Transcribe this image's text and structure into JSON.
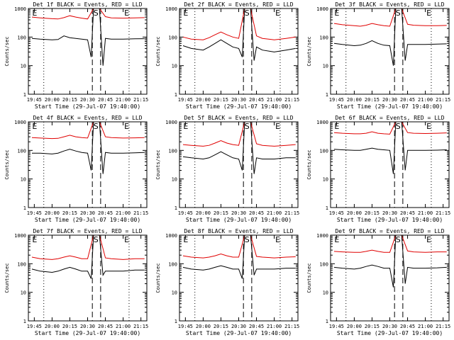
{
  "chart_data": [
    {
      "type": "line",
      "title": "Det 1f BLACK = Events, RED = LLD",
      "xlabel": "Start Time (29-Jul-07 19:40:00)",
      "ylabel": "Counts/sec",
      "yscale": "log",
      "ylim": [
        1,
        1000
      ],
      "ytick_labels": [
        "1",
        "10",
        "100",
        "1000"
      ],
      "xtick_labels": [
        "19:45",
        "20:00",
        "20:15",
        "20:30",
        "20:45",
        "21:00",
        "21:15"
      ],
      "markers": [
        "E",
        "S",
        "E"
      ],
      "series": [
        {
          "name": "LLD",
          "color": "#e00000",
          "x": [
            "19:43",
            "19:50",
            "20:00",
            "20:05",
            "20:10",
            "20:15",
            "20:20",
            "20:25",
            "20:30",
            "20:35",
            "20:40",
            "20:45",
            "20:50",
            "21:00",
            "21:10",
            "21:18"
          ],
          "y": [
            500,
            470,
            440,
            430,
            480,
            560,
            500,
            460,
            430,
            1000,
            1000,
            520,
            470,
            460,
            470,
            480
          ]
        },
        {
          "name": "Events",
          "color": "#000000",
          "x": [
            "19:43",
            "19:50",
            "20:00",
            "20:05",
            "20:10",
            "20:15",
            "20:20",
            "20:25",
            "20:30",
            "20:33",
            "20:35",
            "20:40",
            "20:43",
            "20:45",
            "20:50",
            "21:00",
            "21:10",
            "21:18"
          ],
          "y": [
            90,
            85,
            80,
            82,
            110,
            95,
            90,
            85,
            80,
            20,
            1000,
            1000,
            10,
            90,
            85,
            85,
            87,
            88
          ]
        }
      ]
    },
    {
      "type": "line",
      "title": "Det 2f BLACK = Events, RED = LLD",
      "xlabel": "Start Time (29-Jul-07 19:40:00)",
      "ylabel": "Counts/sec",
      "yscale": "log",
      "ylim": [
        1,
        1000
      ],
      "ytick_labels": [
        "1",
        "10",
        "100",
        "1000"
      ],
      "xtick_labels": [
        "19:45",
        "20:00",
        "20:15",
        "20:30",
        "20:45",
        "21:00",
        "21:15"
      ],
      "markers": [
        "E",
        "S",
        "E"
      ],
      "series": [
        {
          "name": "LLD",
          "color": "#e00000",
          "x": [
            "19:43",
            "19:50",
            "20:00",
            "20:05",
            "20:10",
            "20:15",
            "20:20",
            "20:25",
            "20:30",
            "20:35",
            "20:40",
            "20:45",
            "20:50",
            "21:00",
            "21:10",
            "21:18"
          ],
          "y": [
            100,
            85,
            80,
            95,
            120,
            150,
            120,
            100,
            90,
            1000,
            1000,
            110,
            90,
            80,
            90,
            100
          ]
        },
        {
          "name": "Events",
          "color": "#000000",
          "x": [
            "19:43",
            "19:50",
            "20:00",
            "20:05",
            "20:10",
            "20:15",
            "20:20",
            "20:25",
            "20:30",
            "20:33",
            "20:35",
            "20:40",
            "20:43",
            "20:45",
            "20:50",
            "21:00",
            "21:10",
            "21:18"
          ],
          "y": [
            50,
            40,
            35,
            45,
            60,
            80,
            60,
            45,
            40,
            20,
            1000,
            1000,
            15,
            45,
            35,
            30,
            35,
            40
          ]
        }
      ]
    },
    {
      "type": "line",
      "title": "Det 3f BLACK = Events, RED = LLD",
      "xlabel": "Start Time (29-Jul-07 19:40:00)",
      "ylabel": "Counts/sec",
      "yscale": "log",
      "ylim": [
        1,
        1000
      ],
      "ytick_labels": [
        "1",
        "10",
        "100",
        "1000"
      ],
      "xtick_labels": [
        "19:45",
        "20:00",
        "20:15",
        "20:30",
        "20:45",
        "21:00",
        "21:15"
      ],
      "markers": [
        "E",
        "S",
        "E"
      ],
      "series": [
        {
          "name": "LLD",
          "color": "#e00000",
          "x": [
            "19:43",
            "19:50",
            "20:00",
            "20:05",
            "20:10",
            "20:15",
            "20:20",
            "20:25",
            "20:30",
            "20:35",
            "20:40",
            "20:45",
            "20:50",
            "21:00",
            "21:10",
            "21:18"
          ],
          "y": [
            300,
            270,
            250,
            240,
            260,
            300,
            270,
            250,
            240,
            1000,
            1000,
            280,
            260,
            250,
            250,
            255
          ]
        },
        {
          "name": "Events",
          "color": "#000000",
          "x": [
            "19:43",
            "19:50",
            "20:00",
            "20:05",
            "20:10",
            "20:15",
            "20:20",
            "20:25",
            "20:30",
            "20:33",
            "20:35",
            "20:40",
            "20:43",
            "20:45",
            "20:50",
            "21:00",
            "21:10",
            "21:18"
          ],
          "y": [
            60,
            55,
            50,
            52,
            60,
            75,
            60,
            52,
            50,
            10,
            1000,
            1000,
            15,
            55,
            55,
            55,
            57,
            58
          ]
        }
      ]
    },
    {
      "type": "line",
      "title": "Det 4f BLACK = Events, RED = LLD",
      "xlabel": "Start Time (29-Jul-07 19:40:00)",
      "ylabel": "Counts/sec",
      "yscale": "log",
      "ylim": [
        1,
        1000
      ],
      "ytick_labels": [
        "1",
        "10",
        "100",
        "1000"
      ],
      "xtick_labels": [
        "19:45",
        "20:00",
        "20:15",
        "20:30",
        "20:45",
        "21:00",
        "21:15"
      ],
      "markers": [
        "E",
        "S",
        "E"
      ],
      "series": [
        {
          "name": "LLD",
          "color": "#e00000",
          "x": [
            "19:43",
            "19:50",
            "20:00",
            "20:05",
            "20:10",
            "20:15",
            "20:20",
            "20:25",
            "20:30",
            "20:35",
            "20:40",
            "20:45",
            "20:50",
            "21:00",
            "21:10",
            "21:18"
          ],
          "y": [
            280,
            270,
            260,
            265,
            300,
            340,
            300,
            280,
            270,
            1000,
            1000,
            300,
            280,
            270,
            275,
            280
          ]
        },
        {
          "name": "Events",
          "color": "#000000",
          "x": [
            "19:43",
            "19:50",
            "20:00",
            "20:05",
            "20:10",
            "20:15",
            "20:20",
            "20:25",
            "20:30",
            "20:33",
            "20:35",
            "20:40",
            "20:43",
            "20:45",
            "20:50",
            "21:00",
            "21:10",
            "21:18"
          ],
          "y": [
            80,
            80,
            75,
            80,
            95,
            110,
            95,
            85,
            80,
            20,
            1000,
            1000,
            15,
            85,
            80,
            80,
            82,
            85
          ]
        }
      ]
    },
    {
      "type": "line",
      "title": "Det 5f BLACK = Events, RED = LLD",
      "xlabel": "Start Time (29-Jul-07 19:40:00)",
      "ylabel": "Counts/sec",
      "yscale": "log",
      "ylim": [
        1,
        1000
      ],
      "ytick_labels": [
        "1",
        "10",
        "100",
        "1000"
      ],
      "xtick_labels": [
        "19:45",
        "20:00",
        "20:15",
        "20:30",
        "20:45",
        "21:00",
        "21:15"
      ],
      "markers": [
        "E",
        "S",
        "E"
      ],
      "series": [
        {
          "name": "LLD",
          "color": "#e00000",
          "x": [
            "19:43",
            "19:50",
            "20:00",
            "20:05",
            "20:10",
            "20:15",
            "20:20",
            "20:25",
            "20:30",
            "20:35",
            "20:40",
            "20:45",
            "20:50",
            "21:00",
            "21:10",
            "21:18"
          ],
          "y": [
            160,
            150,
            140,
            150,
            180,
            220,
            180,
            160,
            150,
            1000,
            1000,
            170,
            150,
            140,
            150,
            160
          ]
        },
        {
          "name": "Events",
          "color": "#000000",
          "x": [
            "19:43",
            "19:50",
            "20:00",
            "20:05",
            "20:10",
            "20:15",
            "20:20",
            "20:25",
            "20:30",
            "20:33",
            "20:35",
            "20:40",
            "20:43",
            "20:45",
            "20:50",
            "21:00",
            "21:10",
            "21:18"
          ],
          "y": [
            60,
            55,
            50,
            55,
            70,
            90,
            70,
            55,
            50,
            20,
            1000,
            1000,
            15,
            55,
            50,
            50,
            55,
            55
          ]
        }
      ]
    },
    {
      "type": "line",
      "title": "Det 6f BLACK = Events, RED = LLD",
      "xlabel": "Start Time (29-Jul-07 19:40:00)",
      "ylabel": "Counts/sec",
      "yscale": "log",
      "ylim": [
        1,
        1000
      ],
      "ytick_labels": [
        "1",
        "10",
        "100",
        "1000"
      ],
      "xtick_labels": [
        "19:45",
        "20:00",
        "20:15",
        "20:30",
        "20:45",
        "21:00",
        "21:15"
      ],
      "markers": [
        "E",
        "S",
        "E"
      ],
      "series": [
        {
          "name": "LLD",
          "color": "#e00000",
          "x": [
            "19:43",
            "19:50",
            "20:00",
            "20:05",
            "20:10",
            "20:15",
            "20:20",
            "20:25",
            "20:30",
            "20:35",
            "20:40",
            "20:45",
            "20:50",
            "21:00",
            "21:10",
            "21:18"
          ],
          "y": [
            420,
            400,
            380,
            380,
            400,
            450,
            400,
            380,
            370,
            1000,
            1000,
            420,
            400,
            390,
            400,
            410
          ]
        },
        {
          "name": "Events",
          "color": "#000000",
          "x": [
            "19:43",
            "19:50",
            "20:00",
            "20:05",
            "20:10",
            "20:15",
            "20:20",
            "20:25",
            "20:30",
            "20:33",
            "20:35",
            "20:40",
            "20:43",
            "20:45",
            "20:50",
            "21:00",
            "21:10",
            "21:18"
          ],
          "y": [
            110,
            105,
            100,
            100,
            110,
            120,
            110,
            105,
            100,
            15,
            1000,
            1000,
            20,
            100,
            100,
            100,
            102,
            105
          ]
        }
      ]
    },
    {
      "type": "line",
      "title": "Det 7f BLACK = Events, RED = LLD",
      "xlabel": "Start Time (29-Jul-07 19:40:00)",
      "ylabel": "Counts/sec",
      "yscale": "log",
      "ylim": [
        1,
        1000
      ],
      "ytick_labels": [
        "1",
        "10",
        "100",
        "1000"
      ],
      "xtick_labels": [
        "19:45",
        "20:00",
        "20:15",
        "20:30",
        "20:45",
        "21:00",
        "21:15"
      ],
      "markers": [
        "E",
        "S",
        "E"
      ],
      "series": [
        {
          "name": "LLD",
          "color": "#e00000",
          "x": [
            "19:43",
            "19:50",
            "20:00",
            "20:05",
            "20:10",
            "20:15",
            "20:20",
            "20:25",
            "20:30",
            "20:35",
            "20:40",
            "20:45",
            "20:50",
            "21:00",
            "21:10",
            "21:18"
          ],
          "y": [
            170,
            150,
            140,
            150,
            170,
            190,
            170,
            150,
            150,
            1000,
            1000,
            160,
            150,
            140,
            150,
            150
          ]
        },
        {
          "name": "Events",
          "color": "#000000",
          "x": [
            "19:43",
            "19:50",
            "20:00",
            "20:05",
            "20:10",
            "20:15",
            "20:20",
            "20:25",
            "20:30",
            "20:33",
            "20:35",
            "20:40",
            "20:43",
            "20:45",
            "20:50",
            "21:00",
            "21:10",
            "21:18"
          ],
          "y": [
            65,
            55,
            50,
            55,
            65,
            75,
            65,
            55,
            55,
            30,
            1000,
            1000,
            40,
            55,
            55,
            55,
            60,
            60
          ]
        }
      ]
    },
    {
      "type": "line",
      "title": "Det 8f BLACK = Events, RED = LLD",
      "xlabel": "Start Time (29-Jul-07 19:40:00)",
      "ylabel": "Counts/sec",
      "yscale": "log",
      "ylim": [
        1,
        1000
      ],
      "ytick_labels": [
        "1",
        "10",
        "100",
        "1000"
      ],
      "xtick_labels": [
        "19:45",
        "20:00",
        "20:15",
        "20:30",
        "20:45",
        "21:00",
        "21:15"
      ],
      "markers": [
        "E",
        "S",
        "E"
      ],
      "series": [
        {
          "name": "LLD",
          "color": "#e00000",
          "x": [
            "19:43",
            "19:50",
            "20:00",
            "20:05",
            "20:10",
            "20:15",
            "20:20",
            "20:25",
            "20:30",
            "20:35",
            "20:40",
            "20:45",
            "20:50",
            "21:00",
            "21:10",
            "21:18"
          ],
          "y": [
            190,
            170,
            160,
            170,
            190,
            220,
            190,
            170,
            170,
            1000,
            1000,
            180,
            170,
            160,
            170,
            175
          ]
        },
        {
          "name": "Events",
          "color": "#000000",
          "x": [
            "19:43",
            "19:50",
            "20:00",
            "20:05",
            "20:10",
            "20:15",
            "20:20",
            "20:25",
            "20:30",
            "20:33",
            "20:35",
            "20:40",
            "20:43",
            "20:45",
            "20:50",
            "21:00",
            "21:10",
            "21:18"
          ],
          "y": [
            75,
            65,
            60,
            65,
            75,
            85,
            75,
            65,
            65,
            30,
            1000,
            1000,
            40,
            65,
            65,
            65,
            70,
            70
          ]
        }
      ]
    },
    {
      "type": "line",
      "title": "Det 9f BLACK = Events, RED = LLD",
      "xlabel": "Start Time (29-Jul-07 19:40:00)",
      "ylabel": "Counts/sec",
      "yscale": "log",
      "ylim": [
        1,
        1000
      ],
      "ytick_labels": [
        "1",
        "10",
        "100",
        "1000"
      ],
      "xtick_labels": [
        "19:45",
        "20:00",
        "20:15",
        "20:30",
        "20:45",
        "21:00",
        "21:15"
      ],
      "markers": [
        "E",
        "S",
        "E"
      ],
      "series": [
        {
          "name": "LLD",
          "color": "#e00000",
          "x": [
            "19:43",
            "19:50",
            "20:00",
            "20:05",
            "20:10",
            "20:15",
            "20:20",
            "20:25",
            "20:30",
            "20:35",
            "20:40",
            "20:45",
            "20:50",
            "21:00",
            "21:10",
            "21:18"
          ],
          "y": [
            270,
            260,
            250,
            250,
            270,
            300,
            270,
            250,
            250,
            1000,
            1000,
            280,
            260,
            250,
            260,
            260
          ]
        },
        {
          "name": "Events",
          "color": "#000000",
          "x": [
            "19:43",
            "19:50",
            "20:00",
            "20:05",
            "20:10",
            "20:15",
            "20:20",
            "20:25",
            "20:30",
            "20:33",
            "20:35",
            "20:40",
            "20:43",
            "20:45",
            "20:50",
            "21:00",
            "21:10",
            "21:18"
          ],
          "y": [
            75,
            70,
            65,
            70,
            80,
            90,
            80,
            70,
            70,
            15,
            1000,
            1000,
            20,
            75,
            70,
            70,
            72,
            75
          ]
        }
      ]
    }
  ]
}
